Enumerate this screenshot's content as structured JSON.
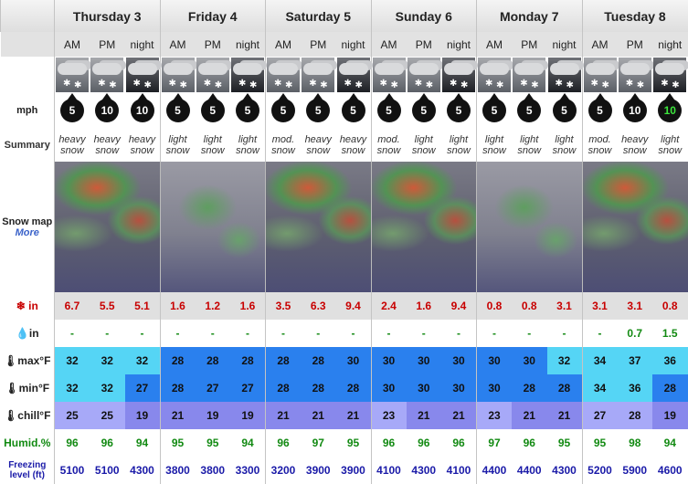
{
  "days": [
    "Thursday 3",
    "Friday 4",
    "Saturday 5",
    "Sunday 6",
    "Monday 7",
    "Tuesday 8"
  ],
  "periods": [
    "AM",
    "PM",
    "night",
    "AM",
    "PM",
    "night",
    "AM",
    "PM",
    "night",
    "AM",
    "PM",
    "night",
    "AM",
    "PM",
    "night",
    "AM",
    "PM",
    "night"
  ],
  "labels": {
    "wind": "mph",
    "summary": "Summary",
    "snow_map": "Snow map",
    "more": "More",
    "snow": "in",
    "rain": "in",
    "max": "max°F",
    "min": "min°F",
    "chill": "chill°F",
    "humid": "Humid.%",
    "freezing": "Freezing level (ft)"
  },
  "icons": [
    "snow",
    "snow",
    "snow-night",
    "cloud-snow",
    "cloud-snow",
    "cloud-night",
    "snow",
    "snow",
    "snow-night",
    "snow",
    "snow",
    "snow-night",
    "cloud-snow",
    "cloud-snow",
    "snow-night",
    "cloud-snow",
    "cloud-snow",
    "snow-night"
  ],
  "wind": [
    "5",
    "10",
    "10",
    "5",
    "5",
    "5",
    "5",
    "5",
    "5",
    "5",
    "5",
    "5",
    "5",
    "5",
    "5",
    "5",
    "10",
    "10"
  ],
  "wind_green": [
    false,
    false,
    false,
    false,
    false,
    false,
    false,
    false,
    false,
    false,
    false,
    false,
    false,
    false,
    false,
    false,
    false,
    true
  ],
  "summary": [
    [
      "heavy",
      "snow"
    ],
    [
      "heavy",
      "snow"
    ],
    [
      "heavy",
      "snow"
    ],
    [
      "light",
      "snow"
    ],
    [
      "light",
      "snow"
    ],
    [
      "light",
      "snow"
    ],
    [
      "mod.",
      "snow"
    ],
    [
      "heavy",
      "snow"
    ],
    [
      "heavy",
      "snow"
    ],
    [
      "mod.",
      "snow"
    ],
    [
      "light",
      "snow"
    ],
    [
      "light",
      "snow"
    ],
    [
      "light",
      "snow"
    ],
    [
      "light",
      "snow"
    ],
    [
      "light",
      "snow"
    ],
    [
      "mod.",
      "snow"
    ],
    [
      "heavy",
      "snow"
    ],
    [
      "light",
      "snow"
    ]
  ],
  "snow": [
    "6.7",
    "5.5",
    "5.1",
    "1.6",
    "1.2",
    "1.6",
    "3.5",
    "6.3",
    "9.4",
    "2.4",
    "1.6",
    "9.4",
    "0.8",
    "0.8",
    "3.1",
    "3.1",
    "3.1",
    "0.8"
  ],
  "rain": [
    "-",
    "-",
    "-",
    "-",
    "-",
    "-",
    "-",
    "-",
    "-",
    "-",
    "-",
    "-",
    "-",
    "-",
    "-",
    "-",
    "0.7",
    "1.5"
  ],
  "max": [
    "32",
    "32",
    "32",
    "28",
    "28",
    "28",
    "28",
    "28",
    "30",
    "30",
    "30",
    "30",
    "30",
    "30",
    "32",
    "34",
    "37",
    "36"
  ],
  "min": [
    "32",
    "32",
    "27",
    "28",
    "27",
    "27",
    "28",
    "28",
    "28",
    "30",
    "30",
    "30",
    "30",
    "28",
    "28",
    "34",
    "36",
    "28"
  ],
  "chill": [
    "25",
    "25",
    "19",
    "21",
    "19",
    "19",
    "21",
    "21",
    "21",
    "23",
    "21",
    "21",
    "23",
    "21",
    "21",
    "27",
    "28",
    "19"
  ],
  "humid": [
    "96",
    "96",
    "94",
    "95",
    "95",
    "94",
    "96",
    "97",
    "95",
    "96",
    "96",
    "96",
    "97",
    "96",
    "95",
    "95",
    "98",
    "94"
  ],
  "freezing": [
    "5100",
    "5100",
    "4300",
    "3800",
    "3800",
    "3300",
    "3200",
    "3900",
    "3900",
    "4100",
    "4300",
    "4100",
    "4400",
    "4400",
    "4300",
    "5200",
    "5900",
    "4600"
  ],
  "colors": {
    "max": [
      "#55d5f5",
      "#55d5f5",
      "#55d5f5",
      "#2a80ee",
      "#2a80ee",
      "#2a80ee",
      "#2a80ee",
      "#2a80ee",
      "#2a80ee",
      "#2a80ee",
      "#2a80ee",
      "#2a80ee",
      "#2a80ee",
      "#2a80ee",
      "#55d5f5",
      "#55d5f5",
      "#55d5f5",
      "#55d5f5"
    ],
    "min": [
      "#55d5f5",
      "#55d5f5",
      "#2a80ee",
      "#2a80ee",
      "#2a80ee",
      "#2a80ee",
      "#2a80ee",
      "#2a80ee",
      "#2a80ee",
      "#2a80ee",
      "#2a80ee",
      "#2a80ee",
      "#2a80ee",
      "#2a80ee",
      "#2a80ee",
      "#55d5f5",
      "#55d5f5",
      "#2a80ee"
    ],
    "chill": [
      "#a7a9f8",
      "#a7a9f8",
      "#8888ec",
      "#8888ec",
      "#8888ec",
      "#8888ec",
      "#8888ec",
      "#8888ec",
      "#8888ec",
      "#a7a9f8",
      "#8888ec",
      "#8888ec",
      "#a7a9f8",
      "#8888ec",
      "#8888ec",
      "#a7a9f8",
      "#a7a9f8",
      "#8888ec"
    ]
  }
}
